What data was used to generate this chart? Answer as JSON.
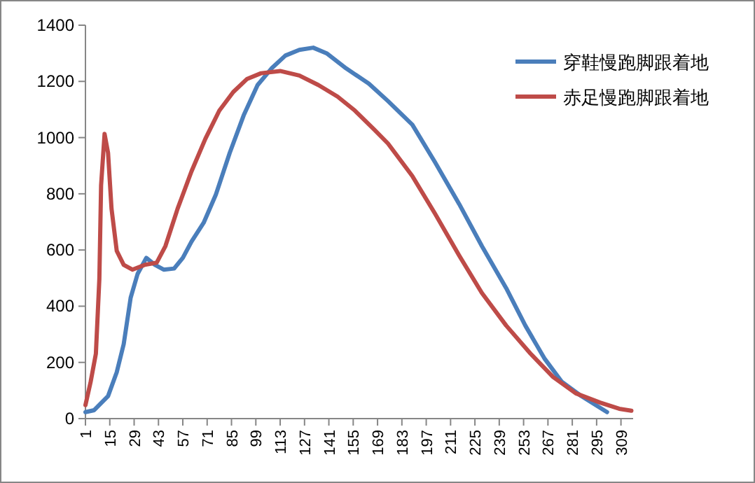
{
  "chart_data": {
    "type": "line",
    "legend": "top right",
    "grid": false,
    "marker": "none",
    "line_style": "solid",
    "xlim": [
      1,
      316
    ],
    "ylim": [
      0,
      1400
    ],
    "xticks": [
      1,
      15,
      29,
      43,
      57,
      71,
      85,
      99,
      113,
      127,
      141,
      155,
      169,
      183,
      197,
      211,
      225,
      239,
      253,
      267,
      281,
      295,
      309
    ],
    "yticks": [
      0,
      200,
      400,
      600,
      800,
      1000,
      1200,
      1400
    ],
    "series": [
      {
        "name": "穿鞋慢跑脚跟着地",
        "color": "#4a7ebb",
        "x": [
          1,
          6,
          14,
          19,
          23,
          27,
          31,
          36,
          41,
          46,
          52,
          57,
          62,
          69,
          76,
          84,
          92,
          100,
          108,
          116,
          124,
          132,
          140,
          151,
          164,
          175,
          189,
          202,
          216,
          229,
          243,
          254,
          265,
          275,
          286,
          301
        ],
        "values": [
          23,
          30,
          80,
          165,
          265,
          430,
          515,
          572,
          547,
          530,
          534,
          572,
          630,
          697,
          797,
          946,
          1079,
          1187,
          1246,
          1292,
          1312,
          1320,
          1299,
          1246,
          1192,
          1130,
          1046,
          913,
          763,
          614,
          464,
          331,
          214,
          131,
          81,
          23
        ]
      },
      {
        "name": "赤足慢跑脚跟着地",
        "color": "#be4b48",
        "x": [
          1,
          4,
          7,
          9,
          10,
          12,
          14,
          16,
          19,
          23,
          28,
          35,
          42,
          47,
          54,
          62,
          70,
          78,
          86,
          94,
          102,
          113,
          124,
          135,
          146,
          156,
          167,
          175,
          189,
          202,
          216,
          229,
          243,
          257,
          270,
          283,
          297,
          308,
          315
        ],
        "values": [
          48,
          131,
          231,
          497,
          830,
          1013,
          946,
          747,
          597,
          547,
          530,
          547,
          555,
          614,
          747,
          880,
          996,
          1096,
          1162,
          1209,
          1229,
          1237,
          1221,
          1187,
          1146,
          1096,
          1029,
          979,
          863,
          730,
          580,
          447,
          331,
          231,
          148,
          90,
          57,
          35,
          28
        ]
      }
    ]
  }
}
